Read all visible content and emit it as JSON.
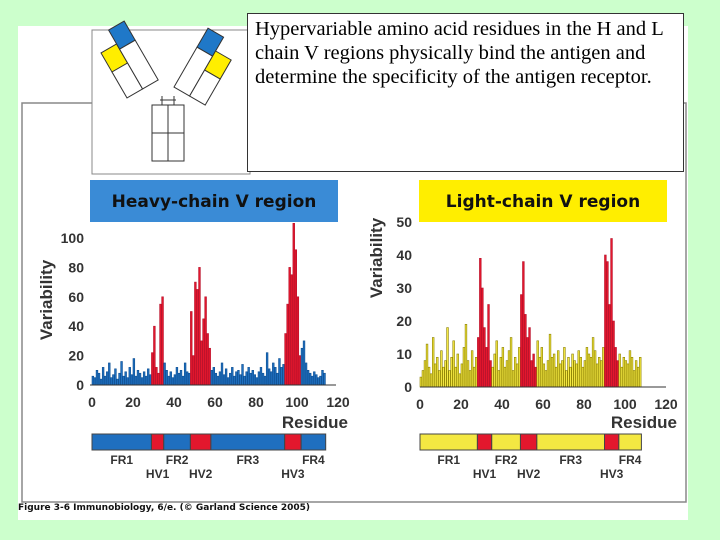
{
  "note_text": "Hypervariable amino acid residues in the H and L chain V regions physically bind the antigen and determine the specificity of the antigen receptor.",
  "caption": {
    "prefix": "Figure 3-6 Immunobiology, 6/e. (",
    "copyright": "© Garland Science 2005)"
  },
  "colors": {
    "background": "#ccffcc",
    "heavy_panel": "#3a8bd6",
    "light_panel": "#ffee00",
    "heavy_bar": "#1f6fbf",
    "light_bar": "#f4e842",
    "hypervariable": "#e3172d",
    "hypervariable_dark": "#b8102a"
  },
  "chart_data": [
    {
      "type": "bar",
      "title": "Heavy-chain V region",
      "xlabel": "Residue",
      "ylabel": "Variability",
      "xlim": [
        0,
        120
      ],
      "ylim": [
        0,
        100
      ],
      "xticks": [
        0,
        20,
        40,
        60,
        80,
        100,
        120
      ],
      "yticks": [
        0,
        20,
        40,
        60,
        80,
        100
      ],
      "regions": [
        {
          "label": "FR1",
          "start": 0,
          "end": 29,
          "hyper": false
        },
        {
          "label": "HV1",
          "start": 29,
          "end": 35,
          "hyper": true
        },
        {
          "label": "FR2",
          "start": 35,
          "end": 48,
          "hyper": false
        },
        {
          "label": "HV2",
          "start": 48,
          "end": 58,
          "hyper": true
        },
        {
          "label": "FR3",
          "start": 58,
          "end": 94,
          "hyper": false
        },
        {
          "label": "HV3",
          "start": 94,
          "end": 102,
          "hyper": true
        },
        {
          "label": "FR4",
          "start": 102,
          "end": 114,
          "hyper": false
        }
      ],
      "values": [
        6,
        5,
        10,
        8,
        4,
        12,
        6,
        9,
        15,
        5,
        7,
        11,
        4,
        8,
        16,
        6,
        9,
        5,
        12,
        7,
        18,
        6,
        10,
        8,
        5,
        9,
        6,
        11,
        7,
        22,
        40,
        12,
        8,
        55,
        60,
        15,
        10,
        6,
        9,
        5,
        7,
        12,
        8,
        10,
        6,
        15,
        9,
        8,
        50,
        20,
        70,
        65,
        80,
        30,
        45,
        60,
        35,
        25,
        10,
        12,
        8,
        6,
        9,
        15,
        7,
        11,
        5,
        8,
        12,
        6,
        9,
        10,
        7,
        14,
        6,
        9,
        12,
        8,
        10,
        7,
        5,
        9,
        12,
        8,
        6,
        22,
        11,
        9,
        15,
        12,
        8,
        18,
        12,
        14,
        35,
        55,
        80,
        75,
        110,
        92,
        60,
        20,
        25,
        30,
        15,
        10,
        8,
        6,
        9,
        7,
        5,
        6,
        10,
        8
      ]
    },
    {
      "type": "bar",
      "title": "Light-chain V region",
      "xlabel": "Residue",
      "ylabel": "Variability",
      "xlim": [
        0,
        120
      ],
      "ylim": [
        0,
        50
      ],
      "xticks": [
        0,
        20,
        40,
        60,
        80,
        100,
        120
      ],
      "yticks": [
        0,
        10,
        20,
        30,
        40,
        50
      ],
      "regions": [
        {
          "label": "FR1",
          "start": 0,
          "end": 28,
          "hyper": false
        },
        {
          "label": "HV1",
          "start": 28,
          "end": 35,
          "hyper": true
        },
        {
          "label": "FR2",
          "start": 35,
          "end": 49,
          "hyper": false
        },
        {
          "label": "HV2",
          "start": 49,
          "end": 57,
          "hyper": true
        },
        {
          "label": "FR3",
          "start": 57,
          "end": 90,
          "hyper": false
        },
        {
          "label": "HV3",
          "start": 90,
          "end": 97,
          "hyper": true
        },
        {
          "label": "FR4",
          "start": 97,
          "end": 108,
          "hyper": false
        }
      ],
      "values": [
        3,
        5,
        8,
        13,
        6,
        4,
        15,
        7,
        9,
        5,
        11,
        6,
        8,
        18,
        5,
        9,
        14,
        6,
        10,
        4,
        7,
        12,
        19,
        8,
        5,
        11,
        6,
        9,
        15,
        39,
        30,
        18,
        12,
        25,
        8,
        6,
        10,
        14,
        5,
        9,
        12,
        6,
        8,
        11,
        15,
        5,
        9,
        7,
        12,
        28,
        38,
        22,
        15,
        18,
        8,
        10,
        6,
        14,
        9,
        12,
        7,
        5,
        8,
        16,
        9,
        10,
        6,
        11,
        7,
        8,
        12,
        5,
        9,
        6,
        10,
        8,
        7,
        11,
        9,
        6,
        8,
        12,
        10,
        9,
        15,
        11,
        7,
        9,
        8,
        12,
        40,
        38,
        25,
        45,
        20,
        12,
        8,
        10,
        6,
        9,
        8,
        7,
        11,
        9,
        5,
        8,
        6,
        9
      ]
    }
  ]
}
